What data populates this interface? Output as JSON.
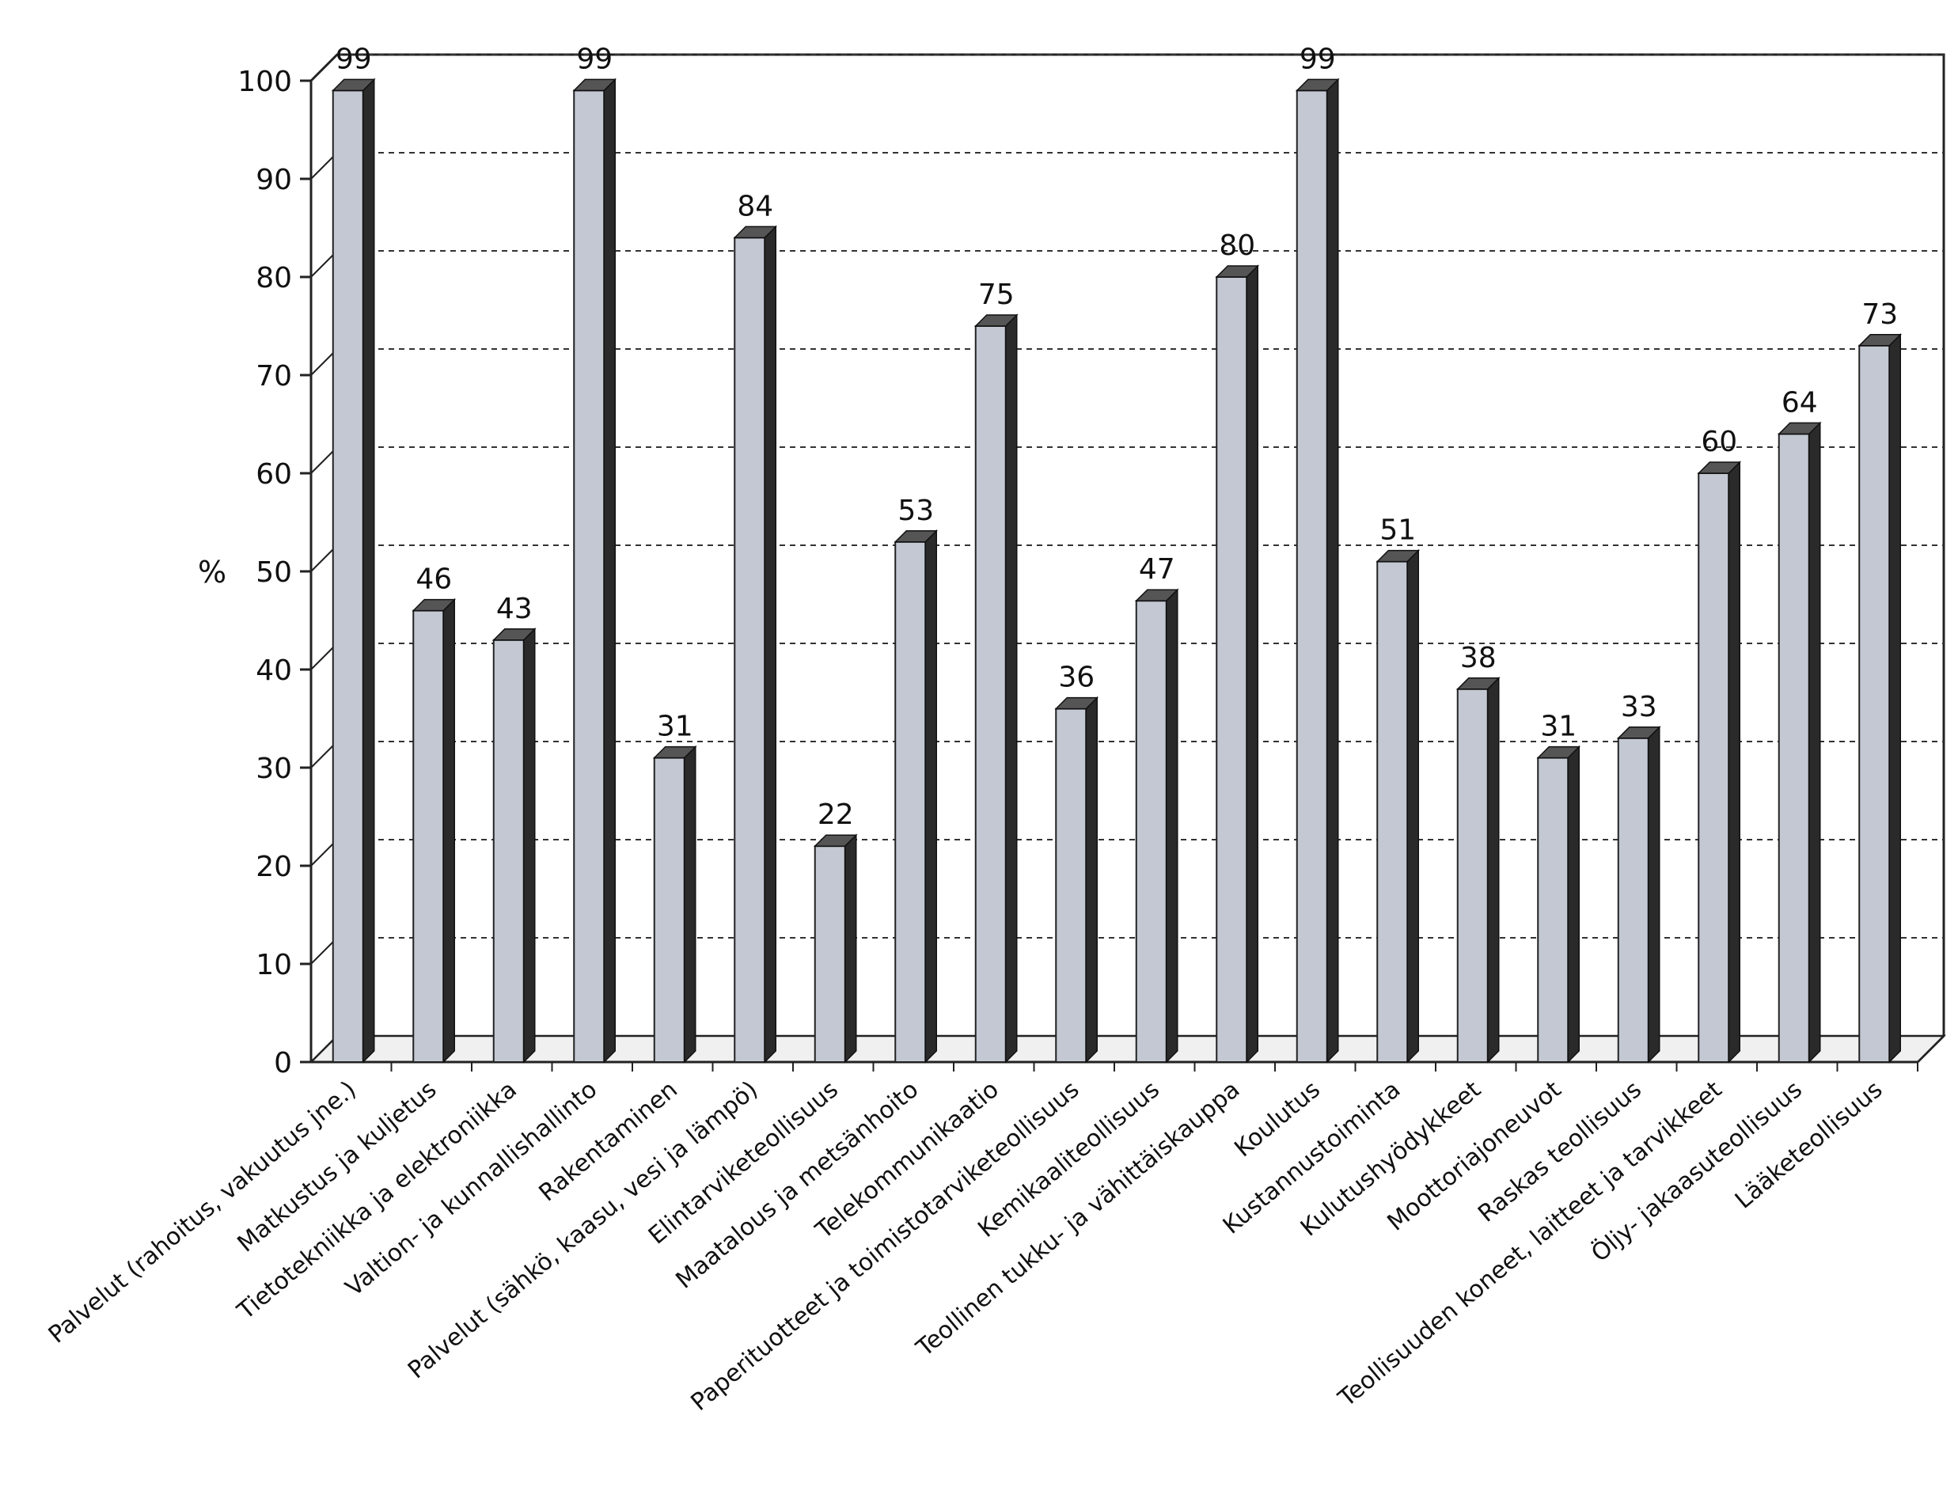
{
  "chart_data": {
    "type": "bar",
    "title": "",
    "xlabel": "",
    "ylabel": "%",
    "ylim": [
      0,
      100
    ],
    "yticks": [
      0,
      10,
      20,
      30,
      40,
      50,
      60,
      70,
      80,
      90,
      100
    ],
    "grid": true,
    "style": "3d",
    "colors": {
      "bar_front": "#c3c8d2",
      "bar_side": "#2a2a2a",
      "bar_top": "#555555",
      "grid": "#333333"
    },
    "categories": [
      "Palvelut (rahoitus, vakuutus jne.)",
      "Matkustus ja kuljetus",
      "Tietotekniikka ja elektroniikka",
      "Valtion- ja kunnallishallinto",
      "Rakentaminen",
      "Palvelut (sähkö, kaasu, vesi ja lämpö)",
      "Elintarviketeollisuus",
      "Maatalous ja metsänhoito",
      "Telekommunikaatio",
      "Paperituotteet ja toimistotarviketeollisuus",
      "Kemikaaliteollisuus",
      "Teollinen tukku- ja vähittäiskauppa",
      "Koulutus",
      "Kustannustoiminta",
      "Kulutushyödykkeet",
      "Moottoriajoneuvot",
      "Raskas teollisuus",
      "Teollisuuden koneet, laitteet ja tarvikkeet",
      "Öljy- jakaasuteollisuus",
      "Lääketeollisuus"
    ],
    "values": [
      99,
      46,
      43,
      99,
      31,
      84,
      22,
      53,
      75,
      36,
      47,
      80,
      99,
      51,
      38,
      31,
      33,
      60,
      64,
      73
    ]
  }
}
